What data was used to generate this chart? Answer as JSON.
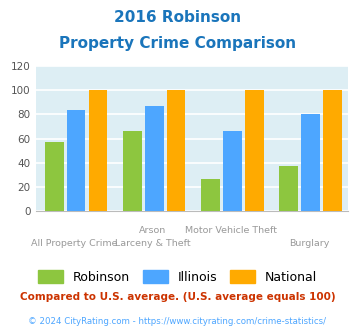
{
  "title_line1": "2016 Robinson",
  "title_line2": "Property Crime Comparison",
  "cat_labels_top": [
    "",
    "Arson",
    "Motor Vehicle Theft",
    ""
  ],
  "cat_labels_bot": [
    "All Property Crime",
    "Larceny & Theft",
    "",
    "Burglary"
  ],
  "robinson": [
    57,
    66,
    27,
    37
  ],
  "illinois": [
    84,
    87,
    66,
    80
  ],
  "national": [
    100,
    100,
    100,
    100
  ],
  "color_robinson": "#8dc63f",
  "color_illinois": "#4da6ff",
  "color_national": "#ffaa00",
  "ylim": [
    0,
    120
  ],
  "yticks": [
    0,
    20,
    40,
    60,
    80,
    100,
    120
  ],
  "bg_color": "#ddeef4",
  "grid_color": "#ffffff",
  "title_color": "#1a75bb",
  "legend_labels": [
    "Robinson",
    "Illinois",
    "National"
  ],
  "footnote1": "Compared to U.S. average. (U.S. average equals 100)",
  "footnote2": "© 2024 CityRating.com - https://www.cityrating.com/crime-statistics/",
  "footnote1_color": "#cc3300",
  "footnote2_color": "#4da6ff",
  "xlabel_top_color": "#999999",
  "xlabel_bot_color": "#999999"
}
